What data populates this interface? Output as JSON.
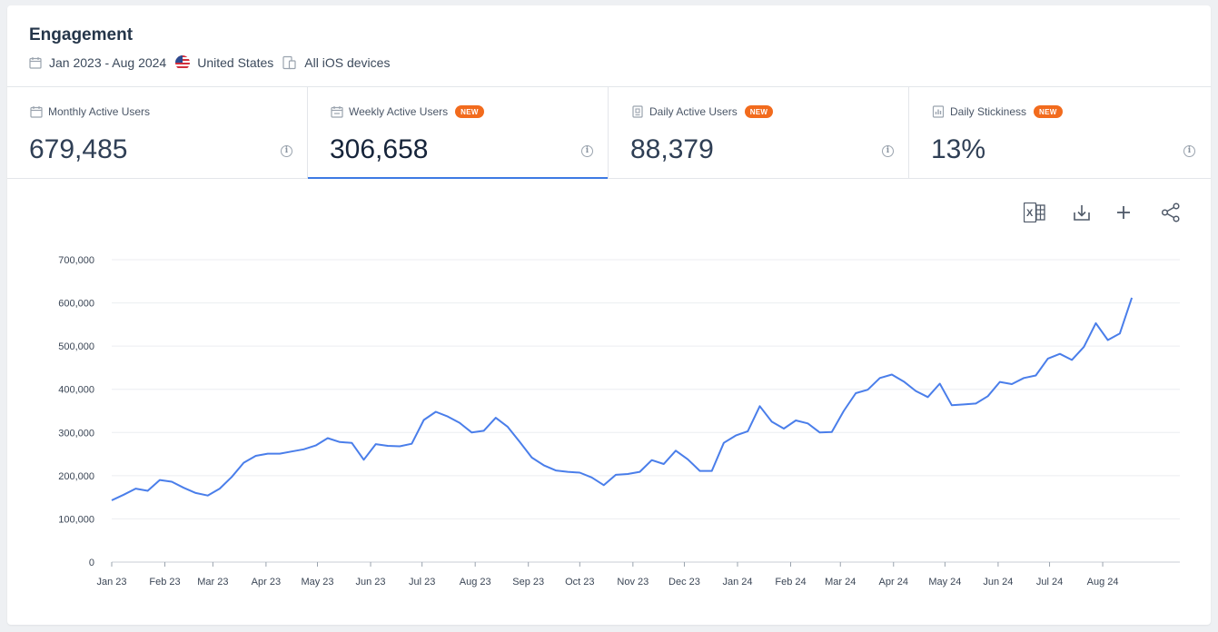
{
  "header": {
    "title": "Engagement",
    "filters": {
      "date_range": "Jan 2023 - Aug 2024",
      "country": "United States",
      "devices": "All iOS devices"
    }
  },
  "metrics": [
    {
      "label": "Monthly Active Users",
      "value": "679,485",
      "badge": "",
      "icon": "calendar-icon"
    },
    {
      "label": "Weekly Active Users",
      "value": "306,658",
      "badge": "NEW",
      "icon": "calendar-week-icon",
      "active": true
    },
    {
      "label": "Daily Active Users",
      "value": "88,379",
      "badge": "NEW",
      "icon": "calendar-day-icon"
    },
    {
      "label": "Daily Stickiness",
      "value": "13%",
      "badge": "NEW",
      "icon": "stickiness-icon"
    }
  ],
  "toolbar": [
    "excel-export-icon",
    "download-icon",
    "add-icon",
    "share-icon"
  ],
  "colors": {
    "accent": "#3d7ae4",
    "badge": "#f26b1d",
    "line": "#4a7eea"
  },
  "chart_data": {
    "type": "line",
    "title": "",
    "xlabel": "",
    "ylabel": "",
    "ylim": [
      0,
      700000
    ],
    "yticks": [
      "0",
      "100,000",
      "200,000",
      "300,000",
      "400,000",
      "500,000",
      "600,000",
      "700,000"
    ],
    "ytick_values": [
      0,
      100000,
      200000,
      300000,
      400000,
      500000,
      600000,
      700000
    ],
    "xlim": [
      "2023-01-01",
      "2024-09-15"
    ],
    "xticks": [
      {
        "label": "Jan 23",
        "date": "2023-01-01"
      },
      {
        "label": "Feb 23",
        "date": "2023-02-01"
      },
      {
        "label": "Mar 23",
        "date": "2023-03-01"
      },
      {
        "label": "Apr 23",
        "date": "2023-04-01"
      },
      {
        "label": "May 23",
        "date": "2023-05-01"
      },
      {
        "label": "Jun 23",
        "date": "2023-06-01"
      },
      {
        "label": "Jul 23",
        "date": "2023-07-01"
      },
      {
        "label": "Aug 23",
        "date": "2023-08-01"
      },
      {
        "label": "Sep 23",
        "date": "2023-09-01"
      },
      {
        "label": "Oct 23",
        "date": "2023-10-01"
      },
      {
        "label": "Nov 23",
        "date": "2023-11-01"
      },
      {
        "label": "Dec 23",
        "date": "2023-12-01"
      },
      {
        "label": "Jan 24",
        "date": "2024-01-01"
      },
      {
        "label": "Feb 24",
        "date": "2024-02-01"
      },
      {
        "label": "Mar 24",
        "date": "2024-03-01"
      },
      {
        "label": "Apr 24",
        "date": "2024-04-01"
      },
      {
        "label": "May 24",
        "date": "2024-05-01"
      },
      {
        "label": "Jun 24",
        "date": "2024-06-01"
      },
      {
        "label": "Jul 24",
        "date": "2024-07-01"
      },
      {
        "label": "Aug 24",
        "date": "2024-08-01"
      }
    ],
    "grid": true,
    "series": [
      {
        "name": "",
        "points": [
          [
            "2023-01-01",
            143000
          ],
          [
            "2023-01-08",
            156000
          ],
          [
            "2023-01-15",
            170000
          ],
          [
            "2023-01-22",
            165000
          ],
          [
            "2023-01-29",
            190000
          ],
          [
            "2023-02-05",
            186000
          ],
          [
            "2023-02-12",
            172000
          ],
          [
            "2023-02-19",
            160000
          ],
          [
            "2023-02-26",
            154000
          ],
          [
            "2023-03-05",
            170000
          ],
          [
            "2023-03-12",
            197000
          ],
          [
            "2023-03-19",
            230000
          ],
          [
            "2023-03-26",
            246000
          ],
          [
            "2023-04-02",
            251000
          ],
          [
            "2023-04-09",
            251000
          ],
          [
            "2023-04-16",
            256000
          ],
          [
            "2023-04-23",
            261000
          ],
          [
            "2023-04-30",
            270000
          ],
          [
            "2023-05-07",
            287000
          ],
          [
            "2023-05-14",
            278000
          ],
          [
            "2023-05-21",
            276000
          ],
          [
            "2023-05-28",
            237000
          ],
          [
            "2023-06-04",
            273000
          ],
          [
            "2023-06-11",
            269000
          ],
          [
            "2023-06-18",
            268000
          ],
          [
            "2023-06-25",
            274000
          ],
          [
            "2023-07-02",
            329000
          ],
          [
            "2023-07-09",
            348000
          ],
          [
            "2023-07-16",
            337000
          ],
          [
            "2023-07-23",
            322000
          ],
          [
            "2023-07-30",
            300000
          ],
          [
            "2023-08-06",
            304000
          ],
          [
            "2023-08-13",
            334000
          ],
          [
            "2023-08-20",
            313000
          ],
          [
            "2023-08-27",
            278000
          ],
          [
            "2023-09-03",
            242000
          ],
          [
            "2023-09-10",
            224000
          ],
          [
            "2023-09-17",
            212000
          ],
          [
            "2023-09-24",
            209000
          ],
          [
            "2023-10-01",
            207000
          ],
          [
            "2023-10-08",
            196000
          ],
          [
            "2023-10-15",
            178000
          ],
          [
            "2023-10-22",
            202000
          ],
          [
            "2023-10-29",
            204000
          ],
          [
            "2023-11-05",
            209000
          ],
          [
            "2023-11-12",
            236000
          ],
          [
            "2023-11-19",
            227000
          ],
          [
            "2023-11-26",
            258000
          ],
          [
            "2023-12-03",
            238000
          ],
          [
            "2023-12-10",
            211000
          ],
          [
            "2023-12-17",
            211000
          ],
          [
            "2023-12-24",
            276000
          ],
          [
            "2023-12-31",
            293000
          ],
          [
            "2024-01-07",
            303000
          ],
          [
            "2024-01-14",
            361000
          ],
          [
            "2024-01-21",
            325000
          ],
          [
            "2024-01-28",
            309000
          ],
          [
            "2024-02-04",
            328000
          ],
          [
            "2024-02-11",
            321000
          ],
          [
            "2024-02-18",
            300000
          ],
          [
            "2024-02-25",
            301000
          ],
          [
            "2024-03-03",
            350000
          ],
          [
            "2024-03-10",
            391000
          ],
          [
            "2024-03-17",
            399000
          ],
          [
            "2024-03-24",
            426000
          ],
          [
            "2024-03-31",
            434000
          ],
          [
            "2024-04-07",
            418000
          ],
          [
            "2024-04-14",
            396000
          ],
          [
            "2024-04-21",
            382000
          ],
          [
            "2024-04-28",
            413000
          ],
          [
            "2024-05-05",
            363000
          ],
          [
            "2024-05-12",
            365000
          ],
          [
            "2024-05-19",
            367000
          ],
          [
            "2024-05-26",
            384000
          ],
          [
            "2024-06-02",
            417000
          ],
          [
            "2024-06-09",
            412000
          ],
          [
            "2024-06-16",
            426000
          ],
          [
            "2024-06-23",
            432000
          ],
          [
            "2024-06-30",
            471000
          ],
          [
            "2024-07-07",
            482000
          ],
          [
            "2024-07-14",
            468000
          ],
          [
            "2024-07-21",
            498000
          ],
          [
            "2024-07-28",
            553000
          ],
          [
            "2024-08-04",
            514000
          ],
          [
            "2024-08-11",
            529000
          ],
          [
            "2024-08-18",
            612000
          ]
        ]
      }
    ]
  }
}
